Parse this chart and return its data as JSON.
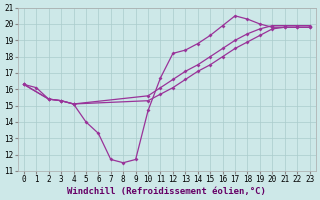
{
  "background_color": "#cde8e8",
  "line_color": "#993399",
  "grid_color": "#aacccc",
  "xlabel": "Windchill (Refroidissement éolien,°C)",
  "xlabel_fontsize": 6.5,
  "tick_fontsize": 5.5,
  "ylim": [
    11,
    21
  ],
  "xlim": [
    -0.5,
    23.5
  ],
  "yticks": [
    11,
    12,
    13,
    14,
    15,
    16,
    17,
    18,
    19,
    20,
    21
  ],
  "xticks": [
    0,
    1,
    2,
    3,
    4,
    5,
    6,
    7,
    8,
    9,
    10,
    11,
    12,
    13,
    14,
    15,
    16,
    17,
    18,
    19,
    20,
    21,
    22,
    23
  ],
  "line1_x": [
    0,
    1,
    2,
    3,
    4,
    5,
    6,
    7,
    8,
    9,
    10,
    11,
    12,
    13,
    14,
    15,
    16,
    17,
    18,
    19,
    20,
    21,
    22,
    23
  ],
  "line1_y": [
    16.3,
    16.1,
    15.4,
    15.3,
    15.1,
    14.0,
    13.3,
    11.7,
    11.5,
    11.7,
    14.7,
    16.7,
    18.2,
    18.4,
    18.8,
    19.3,
    19.9,
    20.5,
    20.3,
    20.0,
    19.8,
    19.8,
    19.8,
    19.8
  ],
  "line2_x": [
    0,
    2,
    3,
    4,
    10,
    11,
    12,
    13,
    14,
    15,
    16,
    17,
    18,
    19,
    20,
    21,
    22,
    23
  ],
  "line2_y": [
    16.3,
    15.4,
    15.3,
    15.1,
    15.6,
    16.1,
    16.6,
    17.1,
    17.5,
    18.0,
    18.5,
    19.0,
    19.4,
    19.7,
    19.9,
    19.9,
    19.9,
    19.9
  ],
  "line3_x": [
    0,
    2,
    3,
    4,
    10,
    11,
    12,
    13,
    14,
    15,
    16,
    17,
    18,
    19,
    20,
    21,
    22,
    23
  ],
  "line3_y": [
    16.3,
    15.4,
    15.3,
    15.1,
    15.3,
    15.7,
    16.1,
    16.6,
    17.1,
    17.5,
    18.0,
    18.5,
    18.9,
    19.3,
    19.7,
    19.8,
    19.8,
    19.8
  ]
}
